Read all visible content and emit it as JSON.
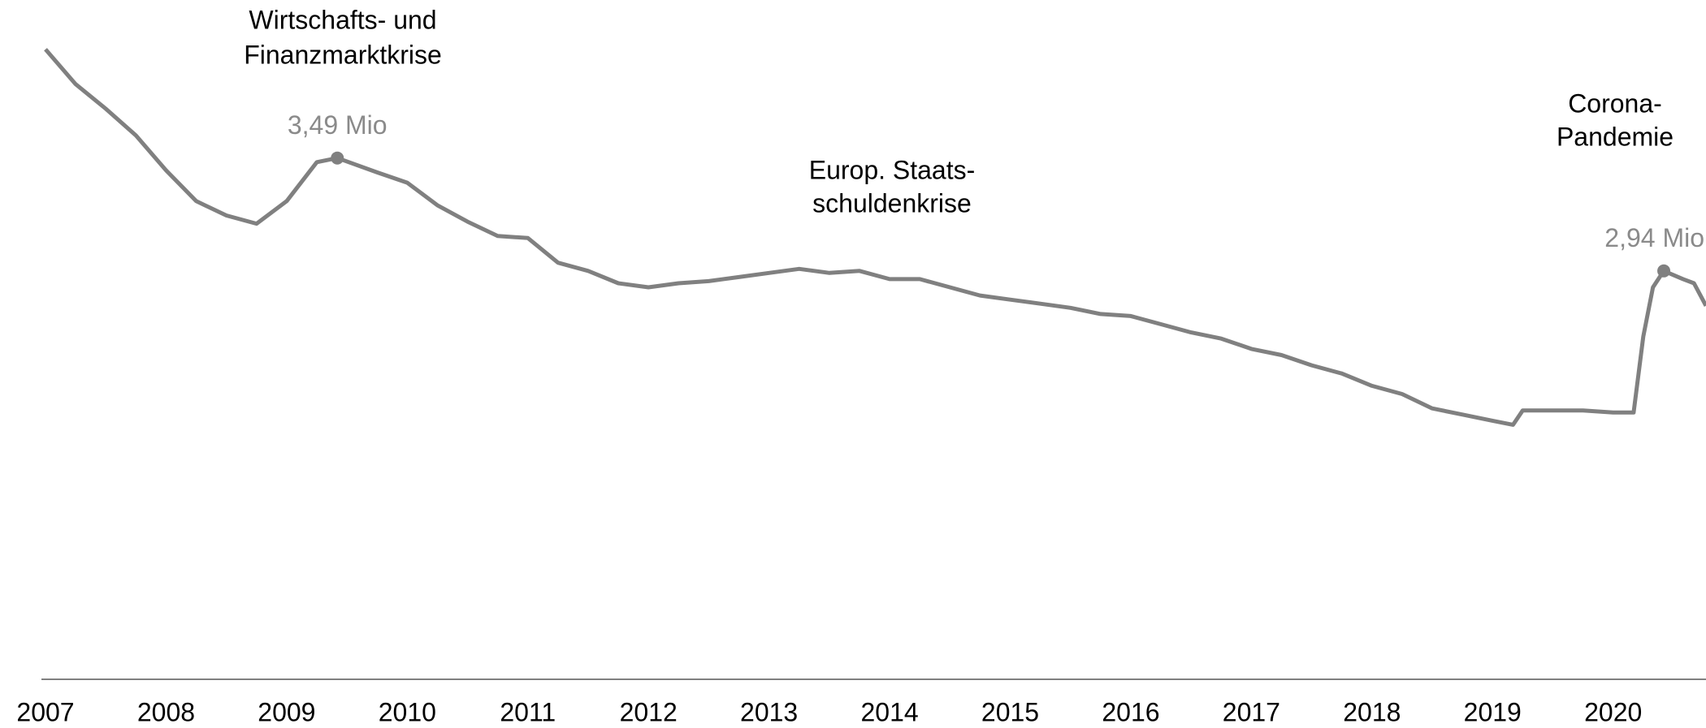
{
  "chart_data": {
    "type": "line",
    "x": [
      2007.0,
      2007.25,
      2007.5,
      2007.75,
      2008.0,
      2008.25,
      2008.5,
      2008.75,
      2009.0,
      2009.25,
      2009.42,
      2009.75,
      2010.0,
      2010.25,
      2010.5,
      2010.75,
      2011.0,
      2011.25,
      2011.5,
      2011.75,
      2012.0,
      2012.25,
      2012.5,
      2012.75,
      2013.0,
      2013.25,
      2013.5,
      2013.75,
      2014.0,
      2014.25,
      2014.5,
      2014.75,
      2015.0,
      2015.25,
      2015.5,
      2015.75,
      2016.0,
      2016.25,
      2016.5,
      2016.75,
      2017.0,
      2017.25,
      2017.5,
      2017.75,
      2018.0,
      2018.25,
      2018.5,
      2018.75,
      2019.0,
      2019.17,
      2019.25,
      2019.5,
      2019.75,
      2020.0,
      2020.17,
      2020.25,
      2020.33,
      2020.42,
      2020.58,
      2020.67,
      2020.77
    ],
    "values": [
      4.02,
      3.85,
      3.73,
      3.6,
      3.43,
      3.28,
      3.21,
      3.17,
      3.28,
      3.47,
      3.49,
      3.42,
      3.37,
      3.26,
      3.18,
      3.11,
      3.1,
      2.98,
      2.94,
      2.88,
      2.86,
      2.88,
      2.89,
      2.91,
      2.93,
      2.95,
      2.93,
      2.94,
      2.9,
      2.9,
      2.86,
      2.82,
      2.8,
      2.78,
      2.76,
      2.73,
      2.72,
      2.68,
      2.64,
      2.61,
      2.56,
      2.53,
      2.48,
      2.44,
      2.38,
      2.34,
      2.27,
      2.24,
      2.21,
      2.19,
      2.26,
      2.26,
      2.26,
      2.25,
      2.25,
      2.62,
      2.86,
      2.94,
      2.9,
      2.88,
      2.77
    ],
    "color": "#808080",
    "xlim": [
      2007,
      2020.77
    ],
    "xticks": [
      2007,
      2008,
      2009,
      2010,
      2011,
      2012,
      2013,
      2014,
      2015,
      2016,
      2017,
      2018,
      2019,
      2020
    ],
    "ylim": [
      0.95,
      4.26
    ],
    "points": [
      {
        "x": 2009.42,
        "value": 3.49,
        "label": "3,49 Mio"
      },
      {
        "x": 2020.42,
        "value": 2.94,
        "label": "2,94 Mio"
      }
    ],
    "annotations": [
      [
        "Wirtschafts- und",
        "Finanzmarktkrise"
      ],
      [
        "Europ. Staats-",
        "schuldenkrise"
      ],
      [
        "Corona-",
        "Pandemie"
      ]
    ]
  }
}
